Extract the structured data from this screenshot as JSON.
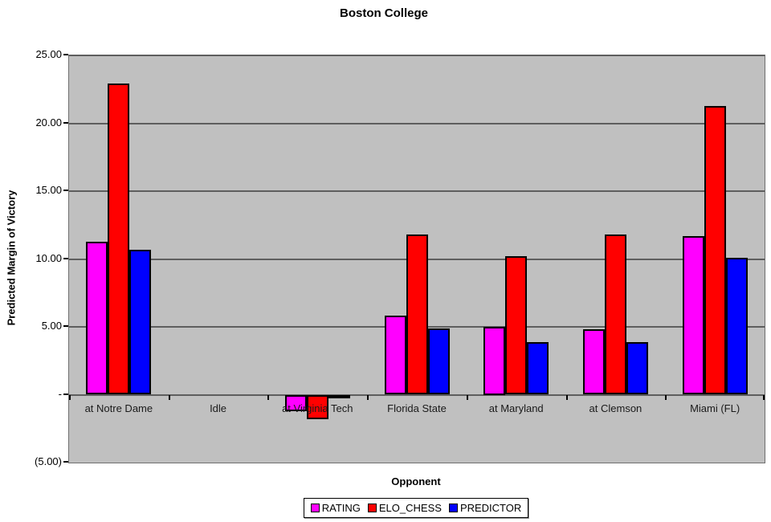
{
  "chart_data": {
    "type": "bar",
    "title": "Boston College",
    "xlabel": "Opponent",
    "ylabel": "Predicted Margin of Victory",
    "categories": [
      "at Notre Dame",
      "Idle",
      "at Virginia Tech",
      "Florida State",
      "at Maryland",
      "at Clemson",
      "Miami (FL)"
    ],
    "series": [
      {
        "name": "RATING",
        "color": "#FF00FF",
        "values": [
          11.3,
          0,
          -1.2,
          5.8,
          5.0,
          4.8,
          11.7
        ]
      },
      {
        "name": "ELO_CHESS",
        "color": "#FF0000",
        "values": [
          22.9,
          0,
          -1.8,
          11.8,
          10.2,
          11.8,
          21.3
        ]
      },
      {
        "name": "PREDICTOR",
        "color": "#0000FF",
        "values": [
          10.7,
          0,
          -0.25,
          4.9,
          3.9,
          3.9,
          10.1
        ]
      }
    ],
    "ylim": [
      -5,
      25
    ],
    "yticks": [
      {
        "value": 25,
        "label": "25.00"
      },
      {
        "value": 20,
        "label": "20.00"
      },
      {
        "value": 15,
        "label": "15.00"
      },
      {
        "value": 10,
        "label": "10.00"
      },
      {
        "value": 5,
        "label": "5.00"
      },
      {
        "value": 0,
        "label": "-"
      },
      {
        "value": -5,
        "label": "(5.00)"
      }
    ],
    "grid": true,
    "legend_position": "bottom",
    "colors": {
      "plot_background": "#C0C0C0",
      "gridline": "#5E5E5E",
      "text": "#000000"
    }
  }
}
